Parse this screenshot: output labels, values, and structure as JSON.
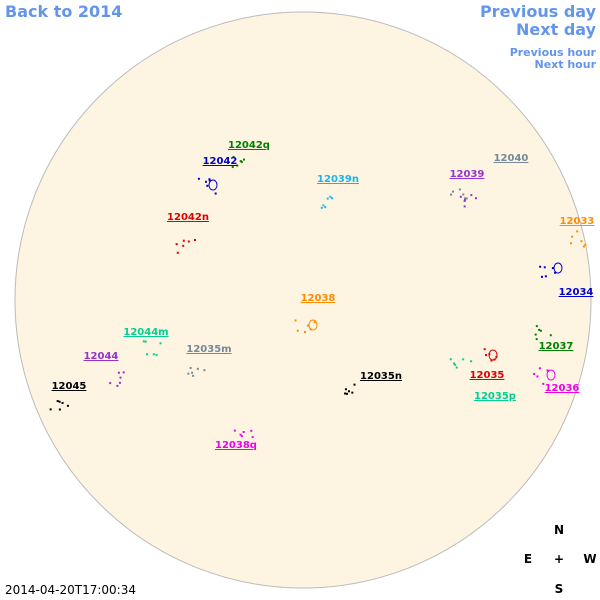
{
  "nav": {
    "back": "Back to 2014",
    "previous_day": "Previous day",
    "next_day": "Next day",
    "previous_hour": "Previous hour",
    "next_hour": "Next hour"
  },
  "regions": [
    {
      "label": "12042q",
      "color": "#008000"
    },
    {
      "label": "12042",
      "color": "#0000cd"
    },
    {
      "label": "12042n",
      "color": "#dd0000"
    },
    {
      "label": "12039n",
      "color": "#1eb4e6"
    },
    {
      "label": "12040",
      "color": "#778899"
    },
    {
      "label": "12039",
      "color": "#9932cc"
    },
    {
      "label": "12033",
      "color": "#ff8c00"
    },
    {
      "label": "12034",
      "color": "#0000cd"
    },
    {
      "label": "12038",
      "color": "#ff8c00"
    },
    {
      "label": "12044m",
      "color": "#00d090"
    },
    {
      "label": "12035m",
      "color": "#778899"
    },
    {
      "label": "12044",
      "color": "#9932cc"
    },
    {
      "label": "12037",
      "color": "#008000"
    },
    {
      "label": "12045",
      "color": "#000000"
    },
    {
      "label": "12035n",
      "color": "#000000"
    },
    {
      "label": "12035",
      "color": "#dd0000"
    },
    {
      "label": "12036",
      "color": "#ee00ee"
    },
    {
      "label": "12035p",
      "color": "#00d090"
    },
    {
      "label": "12038q",
      "color": "#ee00ee"
    }
  ],
  "compass": {
    "north": "N",
    "east": "E",
    "center": "+",
    "west": "W",
    "south": "S"
  },
  "timestamp": "2014-04-20T17:00:34"
}
